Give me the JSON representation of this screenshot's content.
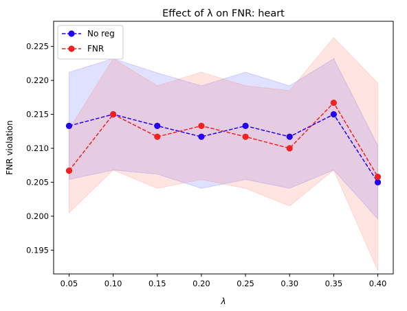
{
  "chart_data": {
    "type": "line",
    "title": "Effect of λ on FNR: heart",
    "xlabel": "λ",
    "ylabel": "FNR violation",
    "x": [
      0.05,
      0.1,
      0.15,
      0.2,
      0.25,
      0.3,
      0.35,
      0.4
    ],
    "xtick_labels": [
      "0.05",
      "0.10",
      "0.15",
      "0.20",
      "0.25",
      "0.30",
      "0.35",
      "0.40"
    ],
    "xlim": [
      0.0325,
      0.4175
    ],
    "ylim": [
      0.1915,
      0.2287
    ],
    "yticks": [
      0.195,
      0.2,
      0.205,
      0.21,
      0.215,
      0.22,
      0.225
    ],
    "ytick_labels": [
      "0.195",
      "0.200",
      "0.205",
      "0.210",
      "0.215",
      "0.220",
      "0.225"
    ],
    "grid": false,
    "legend_position": "top-left",
    "series": [
      {
        "name": "No reg",
        "color": "#2200ee",
        "band_color": "#6666ff",
        "values": [
          0.2133,
          0.215,
          0.2133,
          0.2117,
          0.2133,
          0.2117,
          0.215,
          0.205
        ],
        "lower": [
          0.2054,
          0.2068,
          0.2062,
          0.2041,
          0.2054,
          0.2041,
          0.2068,
          0.1996
        ],
        "upper": [
          0.2212,
          0.2232,
          0.2211,
          0.2192,
          0.2212,
          0.2192,
          0.2232,
          0.2104
        ]
      },
      {
        "name": "FNR",
        "color": "#ee2222",
        "band_color": "#ff7f6e",
        "values": [
          0.2067,
          0.215,
          0.2117,
          0.2133,
          0.2117,
          0.21,
          0.2167,
          0.2058
        ],
        "lower": [
          0.2005,
          0.2068,
          0.2041,
          0.2054,
          0.2041,
          0.2015,
          0.2068,
          0.192
        ],
        "upper": [
          0.2128,
          0.2232,
          0.2192,
          0.2212,
          0.2192,
          0.2185,
          0.2263,
          0.2196
        ]
      }
    ]
  }
}
